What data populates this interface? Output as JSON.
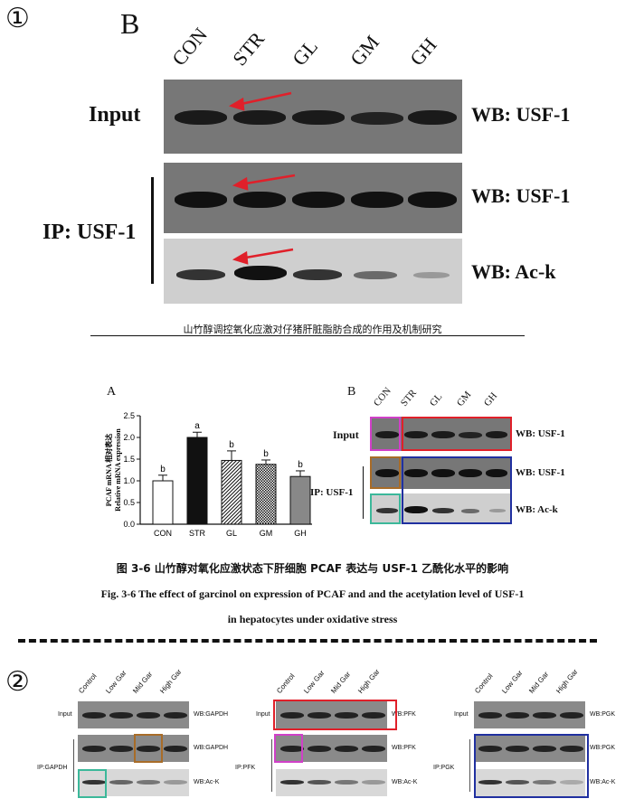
{
  "markers": {
    "part1": "①",
    "part2": "②"
  },
  "top": {
    "panel_letter": "B",
    "lanes": [
      "CON",
      "STR",
      "GL",
      "GM",
      "GH"
    ],
    "input_label": "Input",
    "ip_label": "IP: USF-1",
    "wb_labels": [
      "WB: USF-1",
      "WB: USF-1",
      "WB: Ac-k"
    ],
    "thesis_header": "山竹醇调控氧化应激对仔猪肝脏脂肪合成的作用及机制研究"
  },
  "figA": {
    "panel_letter": "A",
    "chart_data": {
      "type": "bar",
      "categories": [
        "CON",
        "STR",
        "GL",
        "GM",
        "GH"
      ],
      "values": [
        1.0,
        2.0,
        1.47,
        1.38,
        1.1
      ],
      "errors": [
        0.13,
        0.12,
        0.22,
        0.1,
        0.13
      ],
      "significance": [
        "b",
        "a",
        "b",
        "b",
        "b"
      ],
      "ylabel_cn": "PCAF mRNA 相对表达",
      "ylabel": "PCAF mRNA\nRelative mRNA expression",
      "ylim": [
        0,
        2.5
      ],
      "yticks": [
        "0.0",
        "0.5",
        "1.0",
        "1.5",
        "2.0",
        "2.5"
      ],
      "fills": [
        "white",
        "black",
        "hatch",
        "checker",
        "gray"
      ]
    }
  },
  "figB": {
    "panel_letter": "B",
    "lanes": [
      "CON",
      "STR",
      "GL",
      "GM",
      "GH"
    ],
    "input_label": "Input",
    "ip_label": "IP: USF-1",
    "wb_labels": [
      "WB: USF-1",
      "WB: USF-1",
      "WB: Ac-k"
    ]
  },
  "caption": {
    "cn": "图 3-6  山竹醇对氧化应激状态下肝细胞 PCAF 表达与 USF-1 乙酰化水平的影响",
    "en1": "Fig. 3-6 The effect of garcinol on expression of PCAF and and the acetylation level of USF-1",
    "en2": "in hepatocytes under oxidative stress"
  },
  "bottom": {
    "lanes": [
      "Control",
      "Low Gar",
      "Mid Gar",
      "High Gar"
    ],
    "panels": [
      {
        "input_label": "Input",
        "ip_label": "IP:GAPDH",
        "wb_labels": [
          "WB:GAPDH",
          "WB:GAPDH",
          "WB:Ac-K"
        ]
      },
      {
        "input_label": "Input",
        "ip_label": "IP:PFK",
        "wb_labels": [
          "WB:PFK",
          "WB:PFK",
          "WB:Ac-K"
        ]
      },
      {
        "input_label": "Input",
        "ip_label": "IP:PGK",
        "wb_labels": [
          "WB:PGK",
          "WB:PGK",
          "WB:Ac-K"
        ]
      }
    ]
  },
  "colors": {
    "arrow": "#e0202a",
    "red_box": "#e0202a",
    "magenta_box": "#d040c8",
    "brown_box": "#a86c28",
    "teal_box": "#3cb89a",
    "blue_box": "#2030a0"
  }
}
